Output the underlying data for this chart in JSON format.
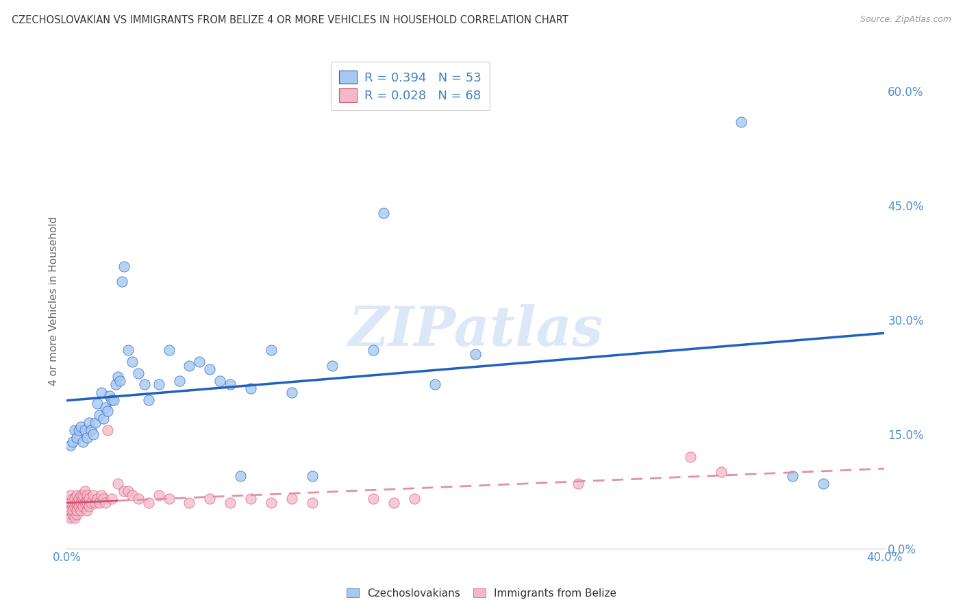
{
  "title": "CZECHOSLOVAKIAN VS IMMIGRANTS FROM BELIZE 4 OR MORE VEHICLES IN HOUSEHOLD CORRELATION CHART",
  "source": "Source: ZipAtlas.com",
  "ylabel": "4 or more Vehicles in Household",
  "xlim": [
    0,
    0.4
  ],
  "ylim": [
    0,
    0.65
  ],
  "xticks": [
    0.0,
    0.05,
    0.1,
    0.15,
    0.2,
    0.25,
    0.3,
    0.35,
    0.4
  ],
  "yticks_right": [
    0.0,
    0.15,
    0.3,
    0.45,
    0.6
  ],
  "legend1_label": "R = 0.394   N = 53",
  "legend2_label": "R = 0.028   N = 68",
  "series1_color": "#a8c8f0",
  "series2_color": "#f5b8c8",
  "trendline1_color": "#2060c0",
  "trendline2_color": "#d05070",
  "trendline2_dash_color": "#e090a8",
  "watermark": "ZIPatlas",
  "watermark_color": "#dce8f8",
  "background_color": "#ffffff",
  "grid_color": "#e0e0e0",
  "title_color": "#333333",
  "axis_label_color": "#666666",
  "tick_label_color": "#5090d0",
  "legend_label_color": "#4080c0",
  "cs_x": [
    0.002,
    0.003,
    0.004,
    0.005,
    0.006,
    0.007,
    0.008,
    0.009,
    0.01,
    0.011,
    0.012,
    0.013,
    0.014,
    0.015,
    0.016,
    0.017,
    0.018,
    0.019,
    0.02,
    0.021,
    0.022,
    0.023,
    0.024,
    0.025,
    0.026,
    0.027,
    0.028,
    0.03,
    0.032,
    0.035,
    0.038,
    0.04,
    0.045,
    0.05,
    0.055,
    0.06,
    0.065,
    0.07,
    0.075,
    0.08,
    0.085,
    0.09,
    0.1,
    0.11,
    0.12,
    0.13,
    0.15,
    0.155,
    0.18,
    0.2,
    0.33,
    0.355,
    0.37
  ],
  "cs_y": [
    0.135,
    0.14,
    0.155,
    0.145,
    0.155,
    0.16,
    0.14,
    0.155,
    0.145,
    0.165,
    0.155,
    0.15,
    0.165,
    0.19,
    0.175,
    0.205,
    0.17,
    0.185,
    0.18,
    0.2,
    0.195,
    0.195,
    0.215,
    0.225,
    0.22,
    0.35,
    0.37,
    0.26,
    0.245,
    0.23,
    0.215,
    0.195,
    0.215,
    0.26,
    0.22,
    0.24,
    0.245,
    0.235,
    0.22,
    0.215,
    0.095,
    0.21,
    0.26,
    0.205,
    0.095,
    0.24,
    0.26,
    0.44,
    0.215,
    0.255,
    0.56,
    0.095,
    0.085
  ],
  "bz_x": [
    0.001,
    0.001,
    0.001,
    0.001,
    0.002,
    0.002,
    0.002,
    0.002,
    0.003,
    0.003,
    0.003,
    0.003,
    0.004,
    0.004,
    0.004,
    0.005,
    0.005,
    0.005,
    0.005,
    0.005,
    0.006,
    0.006,
    0.006,
    0.007,
    0.007,
    0.007,
    0.008,
    0.008,
    0.008,
    0.009,
    0.009,
    0.01,
    0.01,
    0.01,
    0.01,
    0.011,
    0.011,
    0.012,
    0.013,
    0.014,
    0.015,
    0.016,
    0.017,
    0.018,
    0.019,
    0.02,
    0.022,
    0.025,
    0.028,
    0.03,
    0.032,
    0.035,
    0.04,
    0.045,
    0.05,
    0.06,
    0.07,
    0.08,
    0.09,
    0.1,
    0.11,
    0.12,
    0.15,
    0.16,
    0.17,
    0.25,
    0.305,
    0.32
  ],
  "bz_y": [
    0.06,
    0.045,
    0.05,
    0.055,
    0.04,
    0.06,
    0.05,
    0.07,
    0.045,
    0.055,
    0.065,
    0.05,
    0.04,
    0.055,
    0.065,
    0.045,
    0.055,
    0.06,
    0.07,
    0.05,
    0.06,
    0.055,
    0.065,
    0.05,
    0.06,
    0.07,
    0.055,
    0.065,
    0.07,
    0.06,
    0.075,
    0.05,
    0.06,
    0.065,
    0.07,
    0.055,
    0.065,
    0.06,
    0.07,
    0.06,
    0.065,
    0.06,
    0.07,
    0.065,
    0.06,
    0.155,
    0.065,
    0.085,
    0.075,
    0.075,
    0.07,
    0.065,
    0.06,
    0.07,
    0.065,
    0.06,
    0.065,
    0.06,
    0.065,
    0.06,
    0.065,
    0.06,
    0.065,
    0.06,
    0.065,
    0.085,
    0.12,
    0.1
  ]
}
